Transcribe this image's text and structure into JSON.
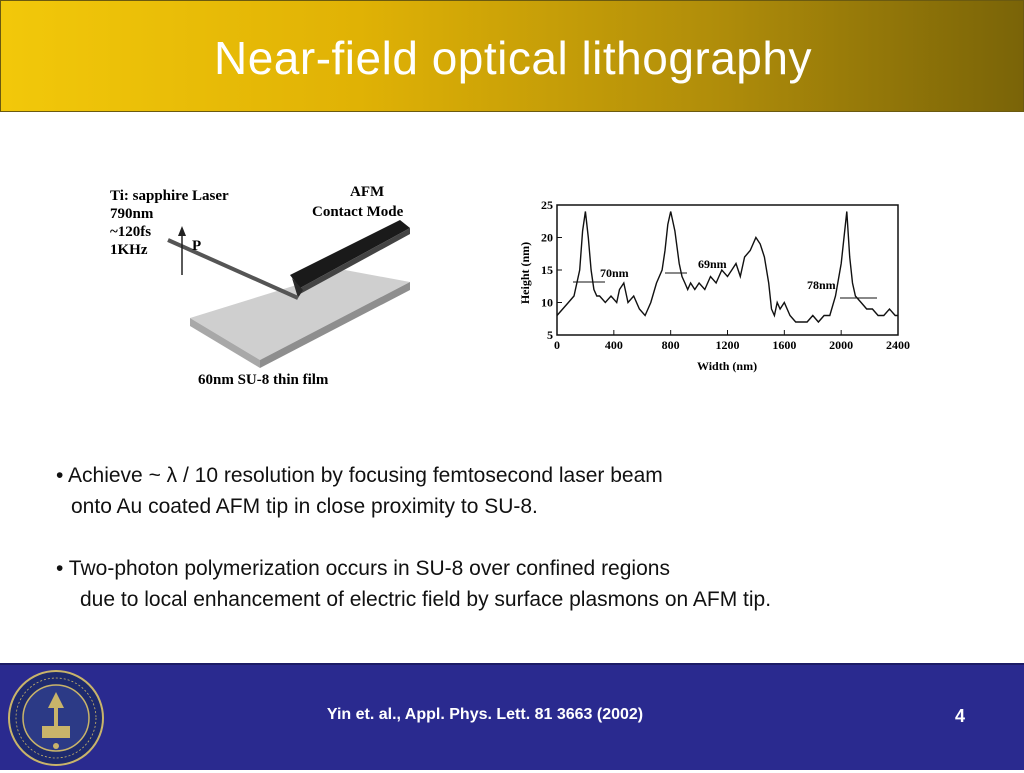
{
  "slide": {
    "title": "Near-field optical lithography",
    "page_number": "4",
    "citation": "Yin et. al., Appl. Phys. Lett. 81 3663 (2002)"
  },
  "figure_left": {
    "laser_line1": "Ti: sapphire Laser",
    "laser_line2": "790nm",
    "laser_line3": "~120fs",
    "laser_line4": "1KHz",
    "polarization_label": "P",
    "afm_line1": "AFM",
    "afm_line2": "Contact Mode",
    "film_caption": "60nm SU-8 thin film"
  },
  "bullets": {
    "b1_line1": "• Achieve ~ λ / 10 resolution by focusing femtosecond laser beam",
    "b1_line2": "onto Au coated AFM tip in close proximity to SU-8.",
    "b2_line1": "• Two-photon polymerization occurs in SU-8 over confined regions",
    "b2_line2": "due to local enhancement of electric field by surface plasmons on AFM tip."
  },
  "chart_data": {
    "type": "line",
    "xlabel": "Width (nm)",
    "ylabel": "Height (nm)",
    "xlim": [
      0,
      2400
    ],
    "ylim": [
      5,
      25
    ],
    "xticks": [
      "0",
      "400",
      "800",
      "1200",
      "1600",
      "2000",
      "2400"
    ],
    "yticks": [
      "5",
      "10",
      "15",
      "20",
      "25"
    ],
    "x": [
      0,
      40,
      80,
      120,
      160,
      180,
      200,
      220,
      240,
      260,
      280,
      300,
      340,
      380,
      420,
      440,
      470,
      500,
      540,
      580,
      620,
      660,
      700,
      740,
      760,
      780,
      800,
      830,
      860,
      880,
      900,
      920,
      940,
      970,
      1000,
      1040,
      1080,
      1120,
      1160,
      1200,
      1230,
      1260,
      1290,
      1320,
      1360,
      1400,
      1430,
      1460,
      1490,
      1510,
      1530,
      1550,
      1570,
      1600,
      1640,
      1680,
      1720,
      1760,
      1800,
      1840,
      1880,
      1920,
      1960,
      2000,
      2020,
      2040,
      2060,
      2080,
      2100,
      2140,
      2180,
      2220,
      2260,
      2300,
      2340,
      2380,
      2400
    ],
    "y": [
      8,
      9,
      10,
      11,
      15,
      21,
      24,
      20,
      15,
      12,
      11,
      11,
      10,
      11,
      10,
      12,
      13,
      10,
      11,
      9,
      8,
      10,
      13,
      15,
      18,
      22,
      24,
      21,
      16,
      14,
      13,
      12,
      13,
      12,
      13,
      12,
      14,
      13,
      15,
      14,
      15,
      16,
      14,
      17,
      18,
      20,
      19,
      17,
      13,
      9,
      8,
      10,
      9,
      10,
      8,
      7,
      7,
      7,
      8,
      7,
      8,
      8,
      11,
      16,
      20,
      24,
      17,
      13,
      11,
      10,
      9,
      9,
      8,
      8,
      9,
      8,
      8
    ],
    "annotations": [
      "70nm",
      "69nm",
      "78nm"
    ],
    "grid": false
  }
}
